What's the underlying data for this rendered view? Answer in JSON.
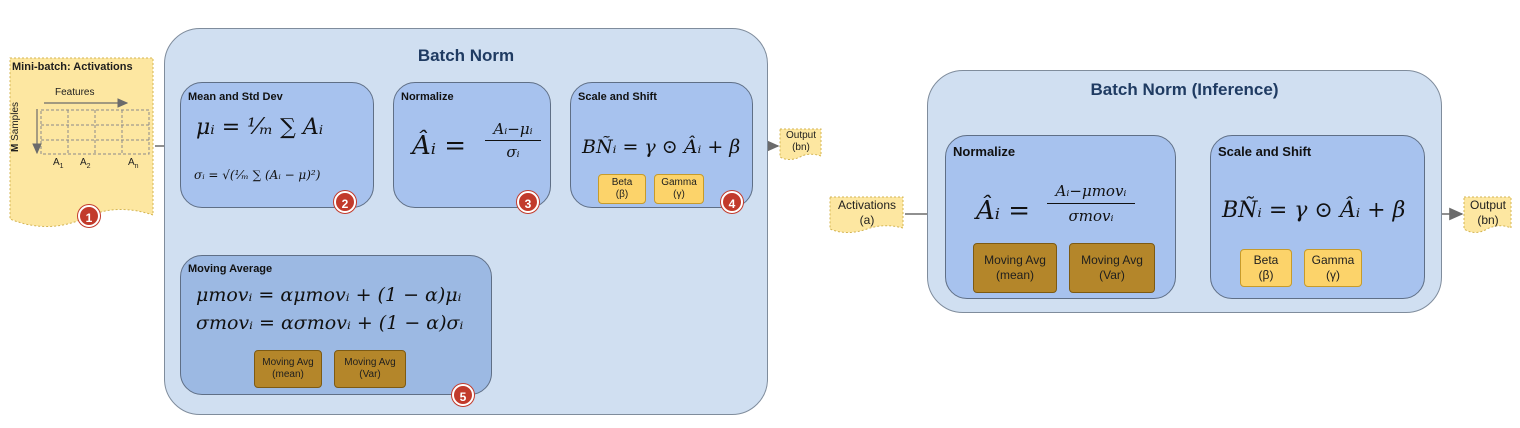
{
  "minibatch": {
    "title": "Mini-batch: Activations",
    "features_label": "Features",
    "m_label": "M",
    "samples_label": "Samples",
    "col_labels": [
      "A",
      "A",
      "A"
    ],
    "col_subs": [
      "1",
      "2",
      "n"
    ],
    "badge": "1"
  },
  "batch_norm": {
    "title": "Batch Norm",
    "mean_std": {
      "title": "Mean and Std Dev",
      "formula_mu": "μᵢ = ¹⁄ₘ ∑ Aᵢ",
      "formula_sigma": "σᵢ = √(¹⁄ₘ ∑ (Aᵢ − μ)²)",
      "badge": "2"
    },
    "normalize": {
      "title": "Normalize",
      "lhs": "Âᵢ =",
      "numerator": "Aᵢ−μᵢ",
      "denominator": "σᵢ",
      "badge": "3"
    },
    "scale_shift": {
      "title": "Scale and Shift",
      "formula": "BÑᵢ = γ ⊙ Âᵢ + β",
      "beta": [
        "Beta",
        "(β)"
      ],
      "gamma": [
        "Gamma",
        "(γ)"
      ],
      "badge": "4"
    },
    "moving_average": {
      "title": "Moving Average",
      "formula_mu": "μmovᵢ = αμmovᵢ + (1 − α)μᵢ",
      "formula_sigma": "σmovᵢ = ασmovᵢ + (1 − α)σᵢ",
      "mov_mean": [
        "Moving Avg",
        "(mean)"
      ],
      "mov_var": [
        "Moving Avg",
        "(Var)"
      ],
      "badge": "5"
    }
  },
  "output_train": [
    "Output",
    "(bn)"
  ],
  "inference": {
    "title": "Batch Norm (Inference)",
    "input": [
      "Activations",
      "(a)"
    ],
    "normalize": {
      "title": "Normalize",
      "lhs": "Âᵢ =",
      "numerator": "Aᵢ−μmovᵢ",
      "denominator": "σmovᵢ",
      "mov_mean": [
        "Moving Avg",
        "(mean)"
      ],
      "mov_var": [
        "Moving Avg",
        "(Var)"
      ]
    },
    "scale_shift": {
      "title": "Scale and Shift",
      "formula": "BÑᵢ = γ ⊙ Âᵢ + β",
      "beta": [
        "Beta",
        "(β)"
      ],
      "gamma": [
        "Gamma",
        "(γ)"
      ]
    },
    "output": [
      "Output",
      "(bn)"
    ]
  },
  "colors": {
    "outer_fill": "#d0dff1",
    "inner_fill": "#a7c2ee",
    "param_fill": "#fcd36a",
    "moving_avg_fill": "#b4862a",
    "badge_fill": "#c23a2b",
    "doc_fill": "#fde7a1"
  }
}
